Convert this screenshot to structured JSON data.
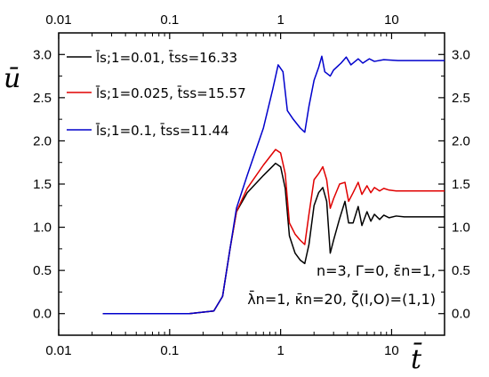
{
  "chart_data": {
    "type": "line",
    "xscale": "log",
    "xlim": [
      0.01,
      30
    ],
    "ylim": [
      -0.25,
      3.25
    ],
    "xlabel": "t̄",
    "ylabel": "ū",
    "x_ticks": [
      0.01,
      0.1,
      1,
      10
    ],
    "x_tick_labels": [
      "0.01",
      "0.1",
      "1",
      "10"
    ],
    "y_ticks": [
      0.0,
      0.5,
      1.0,
      1.5,
      2.0,
      2.5,
      3.0
    ],
    "y_tick_labels": [
      "0.0",
      "0.5",
      "1.0",
      "1.5",
      "2.0",
      "2.5",
      "3.0"
    ],
    "grid": false,
    "legend_position": "top-left",
    "series": [
      {
        "name": "l̄s;1=0.01, t̄ss=16.33",
        "color": "#000000",
        "points": [
          [
            0.025,
            0
          ],
          [
            0.15,
            0
          ],
          [
            0.25,
            0.03
          ],
          [
            0.3,
            0.2
          ],
          [
            0.35,
            0.75
          ],
          [
            0.4,
            1.18
          ],
          [
            0.5,
            1.4
          ],
          [
            0.7,
            1.6
          ],
          [
            0.9,
            1.74
          ],
          [
            1.0,
            1.7
          ],
          [
            1.1,
            1.45
          ],
          [
            1.2,
            0.9
          ],
          [
            1.35,
            0.7
          ],
          [
            1.5,
            0.62
          ],
          [
            1.65,
            0.58
          ],
          [
            1.8,
            0.8
          ],
          [
            2.0,
            1.25
          ],
          [
            2.2,
            1.4
          ],
          [
            2.4,
            1.46
          ],
          [
            2.6,
            1.3
          ],
          [
            2.8,
            0.7
          ],
          [
            3.0,
            0.85
          ],
          [
            3.4,
            1.1
          ],
          [
            3.8,
            1.3
          ],
          [
            4.1,
            1.05
          ],
          [
            4.5,
            1.05
          ],
          [
            5.0,
            1.24
          ],
          [
            5.4,
            1.02
          ],
          [
            6.0,
            1.18
          ],
          [
            6.5,
            1.07
          ],
          [
            7.0,
            1.15
          ],
          [
            7.8,
            1.09
          ],
          [
            8.5,
            1.14
          ],
          [
            9.5,
            1.11
          ],
          [
            11,
            1.13
          ],
          [
            13,
            1.12
          ],
          [
            16.33,
            1.12
          ],
          [
            30,
            1.12
          ]
        ]
      },
      {
        "name": "l̄s;1=0.025, t̄ss=15.57",
        "color": "#e00000",
        "points": [
          [
            0.025,
            0
          ],
          [
            0.15,
            0
          ],
          [
            0.25,
            0.03
          ],
          [
            0.3,
            0.2
          ],
          [
            0.35,
            0.75
          ],
          [
            0.4,
            1.18
          ],
          [
            0.5,
            1.45
          ],
          [
            0.7,
            1.72
          ],
          [
            0.9,
            1.9
          ],
          [
            1.0,
            1.86
          ],
          [
            1.1,
            1.62
          ],
          [
            1.2,
            1.05
          ],
          [
            1.35,
            0.92
          ],
          [
            1.5,
            0.85
          ],
          [
            1.65,
            0.8
          ],
          [
            1.8,
            1.15
          ],
          [
            2.0,
            1.55
          ],
          [
            2.2,
            1.62
          ],
          [
            2.4,
            1.7
          ],
          [
            2.6,
            1.55
          ],
          [
            2.8,
            1.22
          ],
          [
            3.0,
            1.33
          ],
          [
            3.4,
            1.5
          ],
          [
            3.8,
            1.52
          ],
          [
            4.1,
            1.3
          ],
          [
            4.5,
            1.4
          ],
          [
            5.0,
            1.52
          ],
          [
            5.4,
            1.38
          ],
          [
            6.0,
            1.48
          ],
          [
            6.5,
            1.4
          ],
          [
            7.0,
            1.46
          ],
          [
            7.8,
            1.42
          ],
          [
            8.5,
            1.45
          ],
          [
            9.5,
            1.43
          ],
          [
            11,
            1.42
          ],
          [
            15.57,
            1.42
          ],
          [
            30,
            1.42
          ]
        ]
      },
      {
        "name": "l̄s;1=0.1, t̄ss=11.44",
        "color": "#0000cc",
        "points": [
          [
            0.025,
            0
          ],
          [
            0.15,
            0
          ],
          [
            0.25,
            0.03
          ],
          [
            0.3,
            0.2
          ],
          [
            0.35,
            0.75
          ],
          [
            0.4,
            1.22
          ],
          [
            0.5,
            1.6
          ],
          [
            0.7,
            2.15
          ],
          [
            0.85,
            2.6
          ],
          [
            0.95,
            2.88
          ],
          [
            1.05,
            2.8
          ],
          [
            1.15,
            2.35
          ],
          [
            1.3,
            2.25
          ],
          [
            1.5,
            2.15
          ],
          [
            1.65,
            2.1
          ],
          [
            1.8,
            2.4
          ],
          [
            2.0,
            2.7
          ],
          [
            2.2,
            2.85
          ],
          [
            2.35,
            2.98
          ],
          [
            2.5,
            2.8
          ],
          [
            2.8,
            2.75
          ],
          [
            3.0,
            2.82
          ],
          [
            3.5,
            2.9
          ],
          [
            3.9,
            2.97
          ],
          [
            4.3,
            2.88
          ],
          [
            5.0,
            2.95
          ],
          [
            5.5,
            2.9
          ],
          [
            6.3,
            2.95
          ],
          [
            7.0,
            2.92
          ],
          [
            8.5,
            2.94
          ],
          [
            11.44,
            2.93
          ],
          [
            30,
            2.93
          ]
        ]
      }
    ],
    "annotations": [
      "n=3, Γ=0, ε̄n=1,",
      "λ̄n=1, κ̄n=20, ζ̄(I,O)=(1,1)"
    ]
  }
}
